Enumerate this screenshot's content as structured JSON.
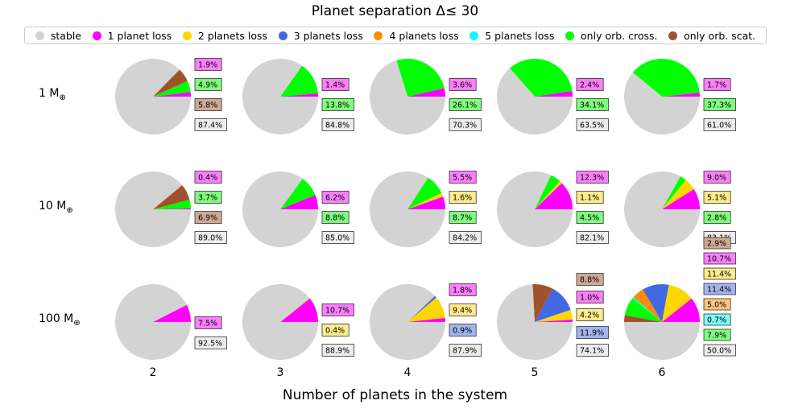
{
  "chart_data": {
    "type": "pie",
    "title": "Planet separation Δ≤  30",
    "xlabel": "Number of planets in the system",
    "legend": {
      "placement": "top",
      "entries": [
        {
          "key": "stable",
          "label": "stable",
          "color": "#d3d3d3"
        },
        {
          "key": "p1",
          "label": "1 planet loss",
          "color": "#ff00ff"
        },
        {
          "key": "p2",
          "label": "2 planets loss",
          "color": "#ffd700"
        },
        {
          "key": "p3",
          "label": "3 planets loss",
          "color": "#4169e1"
        },
        {
          "key": "p4",
          "label": "4 planets loss",
          "color": "#ff8c00"
        },
        {
          "key": "p5",
          "label": "5 planets loss",
          "color": "#00ffff"
        },
        {
          "key": "cross",
          "label": "only orb. cross.",
          "color": "#00ff00"
        },
        {
          "key": "scat",
          "label": "only orb. scat.",
          "color": "#a0522d"
        }
      ]
    },
    "rows": [
      {
        "label": "1 M",
        "sub": "⊕"
      },
      {
        "label": "10 M",
        "sub": "⊕"
      },
      {
        "label": "100 M",
        "sub": "⊕"
      }
    ],
    "columns": [
      "2",
      "3",
      "4",
      "5",
      "6"
    ],
    "pies": [
      [
        {
          "p1": 1.9,
          "cross": 4.9,
          "scat": 5.8,
          "stable": 87.4,
          "labels": [
            "1.9%",
            "4.9%",
            "5.8%",
            "87.4%"
          ],
          "label_keys": [
            "p1",
            "cross",
            "scat",
            "stable"
          ]
        },
        {
          "p1": 1.4,
          "cross": 13.8,
          "stable": 84.8,
          "labels": [
            "1.4%",
            "13.8%",
            "84.8%"
          ],
          "label_keys": [
            "p1",
            "cross",
            "stable"
          ]
        },
        {
          "p1": 3.6,
          "cross": 26.1,
          "stable": 70.3,
          "labels": [
            "3.6%",
            "26.1%",
            "70.3%"
          ],
          "label_keys": [
            "p1",
            "cross",
            "stable"
          ]
        },
        {
          "p1": 2.4,
          "cross": 34.1,
          "stable": 63.5,
          "labels": [
            "2.4%",
            "34.1%",
            "63.5%"
          ],
          "label_keys": [
            "p1",
            "cross",
            "stable"
          ]
        },
        {
          "p1": 1.7,
          "cross": 37.3,
          "stable": 61.0,
          "labels": [
            "1.7%",
            "37.3%",
            "61.0%"
          ],
          "label_keys": [
            "p1",
            "cross",
            "stable"
          ]
        }
      ],
      [
        {
          "p1": 0.4,
          "cross": 3.7,
          "scat": 6.9,
          "stable": 89.0,
          "labels": [
            "0.4%",
            "3.7%",
            "6.9%",
            "89.0%"
          ],
          "label_keys": [
            "p1",
            "cross",
            "scat",
            "stable"
          ]
        },
        {
          "p1": 6.2,
          "cross": 8.8,
          "stable": 85.0,
          "labels": [
            "6.2%",
            "8.8%",
            "85.0%"
          ],
          "label_keys": [
            "p1",
            "cross",
            "stable"
          ]
        },
        {
          "p1": 5.5,
          "p2": 1.6,
          "cross": 8.7,
          "stable": 84.2,
          "labels": [
            "5.5%",
            "1.6%",
            "8.7%",
            "84.2%"
          ],
          "label_keys": [
            "p1",
            "p2",
            "cross",
            "stable"
          ]
        },
        {
          "p1": 12.3,
          "p2": 1.1,
          "cross": 4.5,
          "stable": 82.1,
          "labels": [
            "12.3%",
            "1.1%",
            "4.5%",
            "82.1%"
          ],
          "label_keys": [
            "p1",
            "p2",
            "cross",
            "stable"
          ]
        },
        {
          "p1": 9.0,
          "p2": 5.1,
          "cross": 2.8,
          "stable": 83.1,
          "labels": [
            "9.0%",
            "5.1%",
            "2.8%",
            "83.1%"
          ],
          "label_keys": [
            "p1",
            "p2",
            "cross",
            "stable"
          ]
        }
      ],
      [
        {
          "p1": 7.5,
          "stable": 92.5,
          "labels": [
            "7.5%",
            "92.5%"
          ],
          "label_keys": [
            "p1",
            "stable"
          ]
        },
        {
          "p1": 10.7,
          "p2": 0.4,
          "stable": 88.9,
          "labels": [
            "10.7%",
            "0.4%",
            "88.9%"
          ],
          "label_keys": [
            "p1",
            "p2",
            "stable"
          ]
        },
        {
          "p1": 1.8,
          "p2": 9.4,
          "p3": 0.9,
          "stable": 87.9,
          "labels": [
            "1.8%",
            "9.4%",
            "0.9%",
            "87.9%"
          ],
          "label_keys": [
            "p1",
            "p2",
            "p3",
            "stable"
          ]
        },
        {
          "scat": 8.8,
          "p1": 1.0,
          "p2": 4.2,
          "p3": 11.9,
          "stable": 74.1,
          "labels": [
            "8.8%",
            "1.0%",
            "4.2%",
            "11.9%",
            "74.1%"
          ],
          "label_keys": [
            "scat",
            "p1",
            "p2",
            "p3",
            "stable"
          ]
        },
        {
          "scat": 2.9,
          "p1": 10.7,
          "p2": 11.4,
          "p3": 11.4,
          "p4": 5.0,
          "p5": 0.7,
          "cross": 7.9,
          "stable": 50.0,
          "labels": [
            "2.9%",
            "10.7%",
            "11.4%",
            "11.4%",
            "5.0%",
            "0.7%",
            "7.9%",
            "50.0%"
          ],
          "label_keys": [
            "scat",
            "p1",
            "p2",
            "p3",
            "p4",
            "p5",
            "cross",
            "stable"
          ]
        }
      ]
    ]
  }
}
